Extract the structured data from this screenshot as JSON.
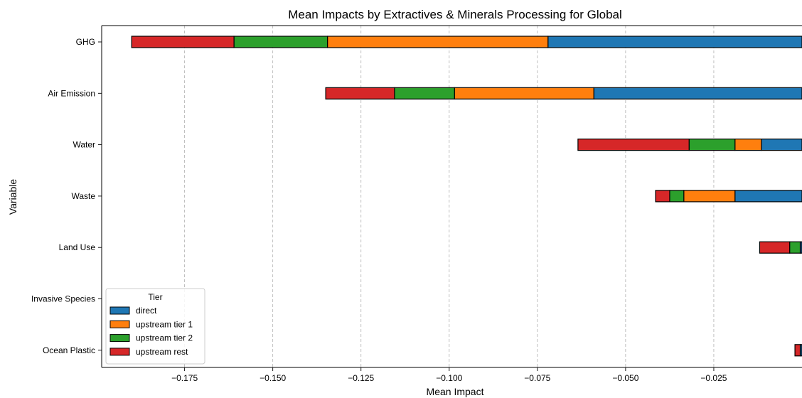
{
  "chart_data": {
    "type": "bar",
    "orientation": "horizontal-stacked",
    "title": "Mean Impacts by Extractives & Minerals Processing for Global",
    "xlabel": "Mean Impact",
    "ylabel": "Variable",
    "xlim": [
      -0.1985,
      0.0
    ],
    "x_ticks": [
      -0.175,
      -0.15,
      -0.125,
      -0.1,
      -0.075,
      -0.05,
      -0.025
    ],
    "x_tick_labels": [
      "−0.175",
      "−0.150",
      "−0.125",
      "−0.100",
      "−0.075",
      "−0.050",
      "−0.025"
    ],
    "grid": "x-dashed",
    "legend_title": "Tier",
    "legend_position": "lower-left",
    "categories": [
      "GHG",
      "Air Emission",
      "Water",
      "Waste",
      "Land Use",
      "Invasive Species",
      "Ocean Plastic"
    ],
    "series": [
      {
        "name": "direct",
        "color": "#1f77b4",
        "values": [
          -0.072,
          -0.059,
          -0.0115,
          -0.019,
          -0.0005,
          0.0,
          -0.0005
        ]
      },
      {
        "name": "upstream tier 1",
        "color": "#ff7f0e",
        "values": [
          -0.0625,
          -0.0395,
          -0.0075,
          -0.0145,
          0.0,
          0.0,
          0.0
        ]
      },
      {
        "name": "upstream tier 2",
        "color": "#2ca02c",
        "values": [
          -0.0265,
          -0.017,
          -0.013,
          -0.004,
          -0.003,
          0.0,
          0.0
        ]
      },
      {
        "name": "upstream rest",
        "color": "#d62728",
        "values": [
          -0.029,
          -0.0195,
          -0.0315,
          -0.004,
          -0.0085,
          0.0,
          -0.0015
        ]
      }
    ]
  }
}
